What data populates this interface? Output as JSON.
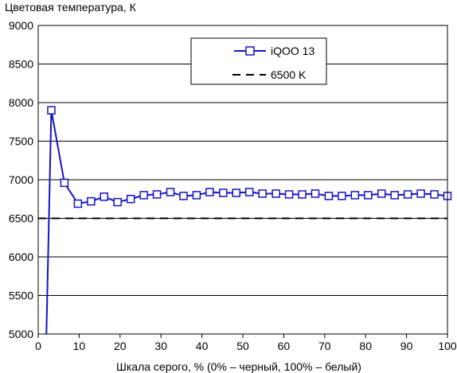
{
  "chart_data": {
    "type": "line",
    "title": "Цветовая температура, К",
    "xlabel": "Шкала серого, % (0% – черный, 100% – белый)",
    "ylabel": "",
    "xlim": [
      0,
      100
    ],
    "ylim": [
      5000,
      9000
    ],
    "xticks": [
      0,
      10,
      20,
      30,
      40,
      50,
      60,
      70,
      80,
      90,
      100
    ],
    "yticks": [
      5000,
      5500,
      6000,
      6500,
      7000,
      7500,
      8000,
      8500,
      9000
    ],
    "grid": "horizontal",
    "legend_position": "top-right",
    "series": [
      {
        "name": "iQOO 13",
        "color": "#1414c8",
        "marker": "square",
        "line_style": "solid",
        "x": [
          2,
          3.2,
          6.4,
          9.7,
          12.9,
          16.1,
          19.4,
          22.6,
          25.8,
          29,
          32.3,
          35.5,
          38.7,
          41.9,
          45.2,
          48.4,
          51.6,
          54.8,
          58.1,
          61.3,
          64.5,
          67.7,
          71,
          74.2,
          77.4,
          80.6,
          83.9,
          87.1,
          90.3,
          93.5,
          96.8,
          100
        ],
        "y": [
          5000,
          7900,
          6960,
          6690,
          6720,
          6780,
          6710,
          6750,
          6800,
          6810,
          6840,
          6790,
          6800,
          6840,
          6830,
          6830,
          6840,
          6820,
          6820,
          6810,
          6810,
          6820,
          6790,
          6790,
          6800,
          6800,
          6820,
          6800,
          6810,
          6820,
          6810,
          6790
        ],
        "marker_from_index": 1
      },
      {
        "name": "6500 K",
        "color": "#000000",
        "line_style": "dashed",
        "x": [
          0,
          100
        ],
        "y": [
          6500,
          6500
        ]
      }
    ]
  }
}
